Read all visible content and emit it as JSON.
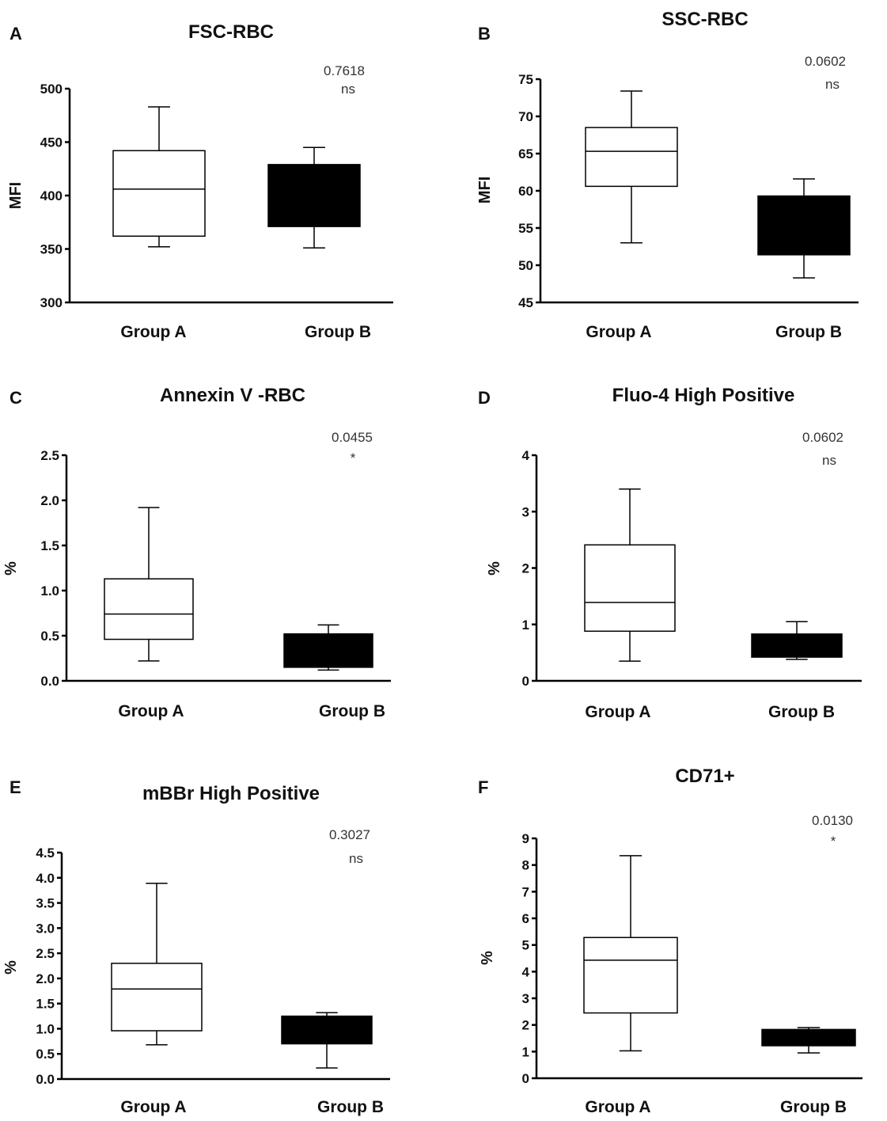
{
  "chart_data": [
    {
      "panel": "A",
      "type": "box",
      "title": "FSC-RBC",
      "ylabel": "MFI",
      "ylim": [
        300,
        500
      ],
      "yticks": [
        "300",
        "350",
        "400",
        "450",
        "500"
      ],
      "categories": [
        "Group A",
        "Group B"
      ],
      "boxes": [
        {
          "min": 352,
          "q1": 362,
          "median": 406,
          "q3": 442,
          "max": 483,
          "fill": "#ffffff"
        },
        {
          "min": 351,
          "q1": 371,
          "median": 400,
          "q3": 429,
          "max": 445,
          "fill": "#000000"
        }
      ],
      "p_value": "0.7618",
      "significance": "ns"
    },
    {
      "panel": "B",
      "type": "box",
      "title": "SSC-RBC",
      "ylabel": "MFI",
      "ylim": [
        45,
        75
      ],
      "yticks": [
        "45",
        "50",
        "55",
        "60",
        "65",
        "70",
        "75"
      ],
      "categories": [
        "Group A",
        "Group B"
      ],
      "boxes": [
        {
          "min": 53,
          "q1": 60.6,
          "median": 65.3,
          "q3": 68.5,
          "max": 73.4,
          "fill": "#ffffff"
        },
        {
          "min": 48.3,
          "q1": 51.4,
          "median": 55.5,
          "q3": 59.3,
          "max": 61.6,
          "fill": "#000000"
        }
      ],
      "p_value": "0.0602",
      "significance": "ns"
    },
    {
      "panel": "C",
      "type": "box",
      "title": "Annexin V -RBC",
      "ylabel": "%",
      "ylim": [
        0,
        2.5
      ],
      "yticks": [
        "0.0",
        "0.5",
        "1.0",
        "1.5",
        "2.0",
        "2.5"
      ],
      "categories": [
        "Group A",
        "Group B"
      ],
      "boxes": [
        {
          "min": 0.22,
          "q1": 0.46,
          "median": 0.74,
          "q3": 1.13,
          "max": 1.92,
          "fill": "#ffffff"
        },
        {
          "min": 0.12,
          "q1": 0.15,
          "median": 0.35,
          "q3": 0.52,
          "max": 0.62,
          "fill": "#000000"
        }
      ],
      "p_value": "0.0455",
      "significance": "*"
    },
    {
      "panel": "D",
      "type": "box",
      "title": "Fluo-4 High Positive",
      "ylabel": "%",
      "ylim": [
        0,
        4
      ],
      "yticks": [
        "0",
        "1",
        "2",
        "3",
        "4"
      ],
      "categories": [
        "Group A",
        "Group B"
      ],
      "boxes": [
        {
          "min": 0.35,
          "q1": 0.88,
          "median": 1.39,
          "q3": 2.41,
          "max": 3.4,
          "fill": "#ffffff"
        },
        {
          "min": 0.38,
          "q1": 0.42,
          "median": 0.6,
          "q3": 0.83,
          "max": 1.05,
          "fill": "#000000"
        }
      ],
      "p_value": "0.0602",
      "significance": "ns"
    },
    {
      "panel": "E",
      "type": "box",
      "title": "mBBr High Positive",
      "ylabel": "%",
      "ylim": [
        0,
        4.5
      ],
      "yticks": [
        "0.0",
        "0.5",
        "1.0",
        "1.5",
        "2.0",
        "2.5",
        "3.0",
        "3.5",
        "4.0",
        "4.5"
      ],
      "categories": [
        "Group A",
        "Group B"
      ],
      "boxes": [
        {
          "min": 0.68,
          "q1": 0.96,
          "median": 1.79,
          "q3": 2.3,
          "max": 3.89,
          "fill": "#ffffff"
        },
        {
          "min": 0.22,
          "q1": 0.7,
          "median": 1.0,
          "q3": 1.25,
          "max": 1.32,
          "fill": "#000000"
        }
      ],
      "p_value": "0.3027",
      "significance": "ns"
    },
    {
      "panel": "F",
      "type": "box",
      "title": "CD71+",
      "ylabel": "%",
      "ylim": [
        0,
        9
      ],
      "yticks": [
        "0",
        "1",
        "2",
        "3",
        "4",
        "5",
        "6",
        "7",
        "8",
        "9"
      ],
      "categories": [
        "Group A",
        "Group B"
      ],
      "boxes": [
        {
          "min": 1.03,
          "q1": 2.45,
          "median": 4.43,
          "q3": 5.28,
          "max": 8.35,
          "fill": "#ffffff"
        },
        {
          "min": 0.95,
          "q1": 1.22,
          "median": 1.5,
          "q3": 1.83,
          "max": 1.9,
          "fill": "#000000"
        }
      ],
      "p_value": "0.0130",
      "significance": "*"
    }
  ]
}
